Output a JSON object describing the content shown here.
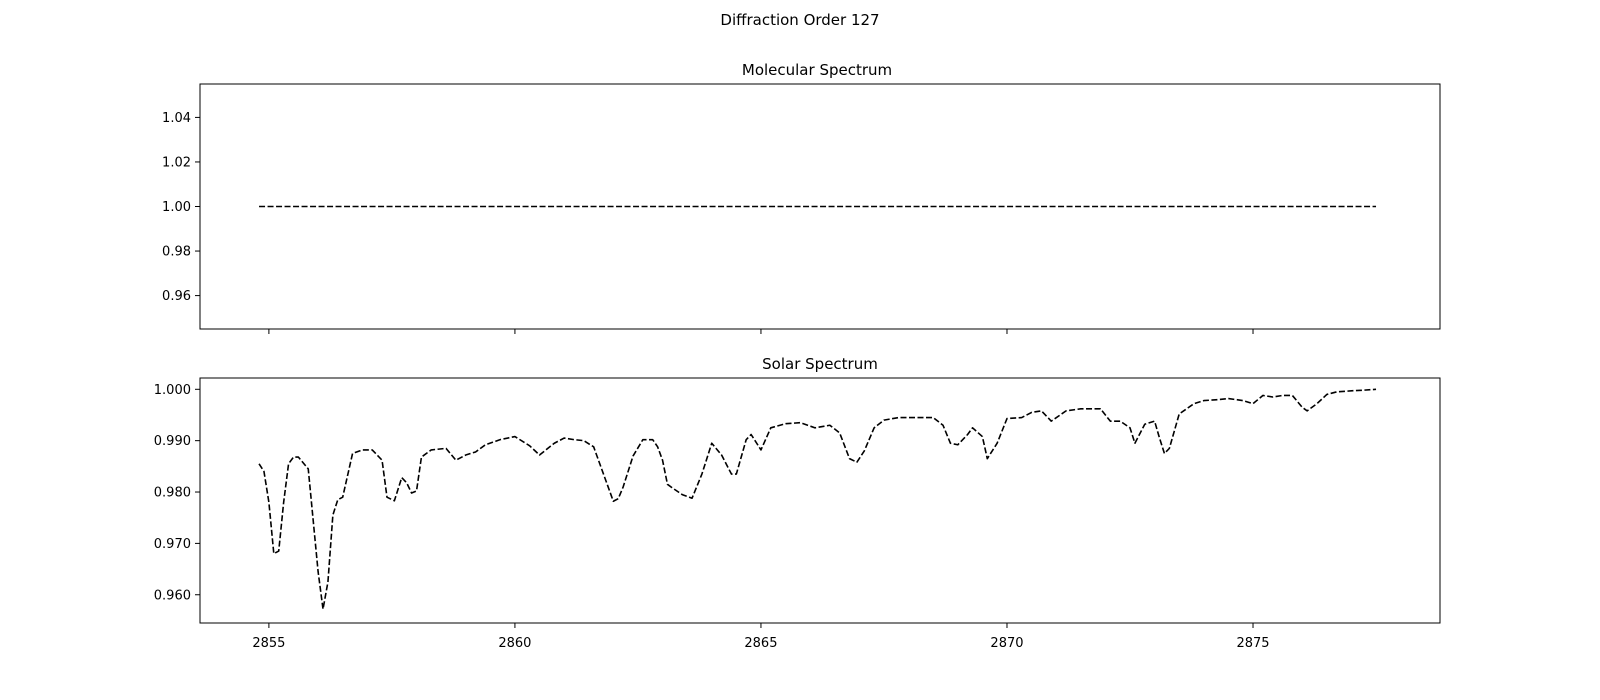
{
  "figure": {
    "suptitle": "Diffraction Order 127"
  },
  "chart_data": [
    {
      "type": "line",
      "title": "Molecular Spectrum",
      "xlabel": "",
      "ylabel": "",
      "xlim": [
        2853.6,
        2878.8
      ],
      "ylim": [
        0.945,
        1.055
      ],
      "yticks": [
        0.96,
        0.98,
        1.0,
        1.02,
        1.04
      ],
      "ytick_labels": [
        "0.96",
        "0.98",
        "1.00",
        "1.02",
        "1.04"
      ],
      "xticks": [
        2855,
        2860,
        2865,
        2870,
        2875
      ],
      "xtick_labels": [],
      "grid": false,
      "series": [
        {
          "line_style": "dashed",
          "color": "#000000",
          "x": [
            2854.8,
            2877.5
          ],
          "y": [
            1.0,
            1.0
          ]
        }
      ]
    },
    {
      "type": "line",
      "title": "Solar Spectrum",
      "xlabel": "",
      "ylabel": "",
      "xlim": [
        2853.6,
        2878.8
      ],
      "ylim": [
        0.9545,
        1.0022
      ],
      "yticks": [
        0.96,
        0.97,
        0.98,
        0.99,
        1.0
      ],
      "ytick_labels": [
        "0.960",
        "0.970",
        "0.980",
        "0.990",
        "1.000"
      ],
      "xticks": [
        2855,
        2860,
        2865,
        2870,
        2875
      ],
      "xtick_labels": [
        "2855",
        "2860",
        "2865",
        "2870",
        "2875"
      ],
      "grid": false,
      "series": [
        {
          "line_style": "dashed",
          "color": "#000000",
          "x": [
            2854.8,
            2854.9,
            2855.0,
            2855.1,
            2855.2,
            2855.3,
            2855.4,
            2855.5,
            2855.6,
            2855.8,
            2856.0,
            2856.1,
            2856.2,
            2856.3,
            2856.4,
            2856.5,
            2856.7,
            2856.9,
            2857.1,
            2857.3,
            2857.4,
            2857.55,
            2857.7,
            2857.8,
            2857.9,
            2858.0,
            2858.1,
            2858.3,
            2858.6,
            2858.8,
            2859.0,
            2859.2,
            2859.4,
            2859.7,
            2860.0,
            2860.3,
            2860.5,
            2860.8,
            2861.0,
            2861.2,
            2861.4,
            2861.6,
            2861.8,
            2862.0,
            2862.1,
            2862.2,
            2862.4,
            2862.6,
            2862.8,
            2862.9,
            2863.0,
            2863.1,
            2863.2,
            2863.4,
            2863.6,
            2863.8,
            2864.0,
            2864.2,
            2864.4,
            2864.5,
            2864.7,
            2864.8,
            2865.0,
            2865.2,
            2865.5,
            2865.8,
            2866.1,
            2866.4,
            2866.6,
            2866.8,
            2866.95,
            2867.1,
            2867.3,
            2867.5,
            2867.8,
            2868.2,
            2868.5,
            2868.7,
            2868.85,
            2869.0,
            2869.2,
            2869.3,
            2869.5,
            2869.6,
            2869.8,
            2870.0,
            2870.3,
            2870.5,
            2870.7,
            2870.9,
            2871.2,
            2871.5,
            2871.7,
            2871.9,
            2872.1,
            2872.3,
            2872.5,
            2872.6,
            2872.8,
            2873.0,
            2873.1,
            2873.2,
            2873.3,
            2873.5,
            2873.8,
            2874.0,
            2874.3,
            2874.5,
            2874.8,
            2875.0,
            2875.2,
            2875.4,
            2875.6,
            2875.8,
            2876.0,
            2876.1,
            2876.3,
            2876.5,
            2876.7,
            2877.0,
            2877.2,
            2877.5
          ],
          "y": [
            0.9855,
            0.984,
            0.978,
            0.968,
            0.9685,
            0.978,
            0.9855,
            0.9868,
            0.9868,
            0.9845,
            0.9645,
            0.9572,
            0.9625,
            0.9755,
            0.9785,
            0.979,
            0.9875,
            0.9882,
            0.9882,
            0.9862,
            0.979,
            0.9783,
            0.9828,
            0.9818,
            0.9798,
            0.9802,
            0.9868,
            0.9882,
            0.9885,
            0.9862,
            0.9872,
            0.9878,
            0.9892,
            0.9902,
            0.9908,
            0.989,
            0.9872,
            0.9895,
            0.9905,
            0.9902,
            0.99,
            0.9888,
            0.9835,
            0.9782,
            0.9787,
            0.981,
            0.987,
            0.9902,
            0.9902,
            0.9888,
            0.9862,
            0.9815,
            0.9808,
            0.9795,
            0.9788,
            0.9835,
            0.9895,
            0.9872,
            0.9835,
            0.9835,
            0.9902,
            0.9912,
            0.9882,
            0.9925,
            0.9933,
            0.9935,
            0.9925,
            0.993,
            0.9915,
            0.9865,
            0.9858,
            0.988,
            0.9925,
            0.994,
            0.9945,
            0.9945,
            0.9945,
            0.993,
            0.9895,
            0.9892,
            0.9912,
            0.9925,
            0.9908,
            0.9865,
            0.9895,
            0.9943,
            0.9945,
            0.9955,
            0.9958,
            0.9938,
            0.9958,
            0.9962,
            0.9962,
            0.9962,
            0.9938,
            0.9938,
            0.9925,
            0.9895,
            0.9932,
            0.9938,
            0.9905,
            0.9875,
            0.9885,
            0.9952,
            0.9972,
            0.9978,
            0.998,
            0.9982,
            0.9978,
            0.9972,
            0.9988,
            0.9985,
            0.9988,
            0.9988,
            0.9965,
            0.9958,
            0.9972,
            0.999,
            0.9995,
            0.9997,
            0.9998,
            1.0
          ]
        }
      ]
    }
  ]
}
